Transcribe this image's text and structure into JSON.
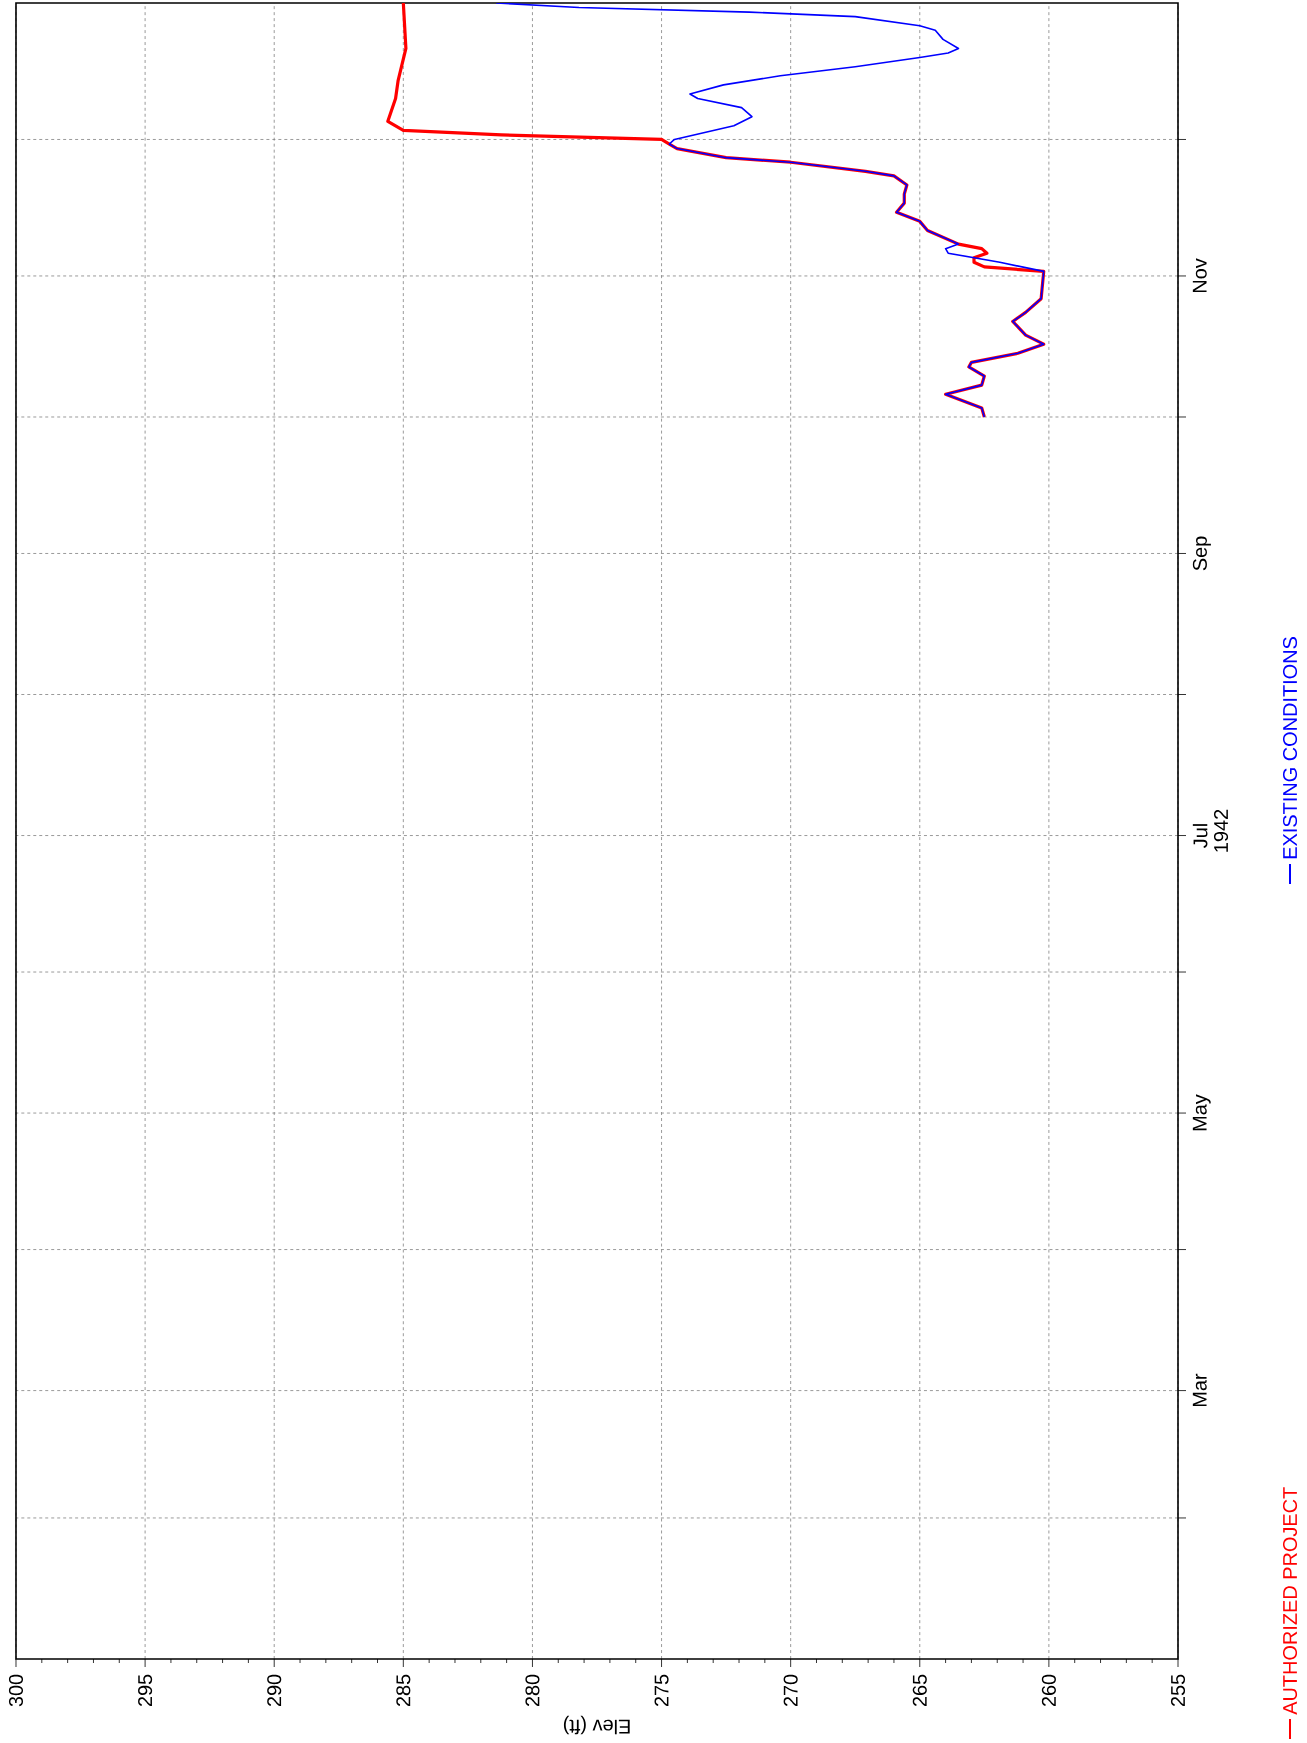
{
  "chart_data": {
    "type": "line",
    "orientation": "horizontal",
    "xlabel": "Elev (ft)",
    "ylabel": "1942",
    "xlim": [
      300,
      255
    ],
    "xticks": [
      300,
      295,
      290,
      285,
      280,
      275,
      270,
      265,
      260,
      255
    ],
    "ylim": [
      "1942-01-01",
      "1942-12-31"
    ],
    "yticks": [
      {
        "value": "1942-02-01",
        "label": null
      },
      {
        "value": "1942-03-01",
        "label": "Mar"
      },
      {
        "value": "1942-04-01",
        "label": null
      },
      {
        "value": "1942-05-01",
        "label": "May"
      },
      {
        "value": "1942-06-01",
        "label": null
      },
      {
        "value": "1942-07-01",
        "label": "Jul"
      },
      {
        "value": "1942-08-01",
        "label": null
      },
      {
        "value": "1942-09-01",
        "label": "Sep"
      },
      {
        "value": "1942-10-01",
        "label": null
      },
      {
        "value": "1942-11-01",
        "label": "Nov"
      },
      {
        "value": "1942-12-01",
        "label": null
      }
    ],
    "grid": true,
    "legend": "right",
    "marker": "none",
    "line_style": "solid",
    "series": [
      {
        "name": "AUTHORIZED PROJECT",
        "color": "#ff0000",
        "x": [
          "1942-10-01",
          "1942-10-03",
          "1942-10-06",
          "1942-10-08",
          "1942-10-10",
          "1942-10-12",
          "1942-10-13",
          "1942-10-15",
          "1942-10-17",
          "1942-10-19",
          "1942-10-22",
          "1942-10-24",
          "1942-10-27",
          "1942-11-02",
          "1942-11-03",
          "1942-11-04",
          "1942-11-05",
          "1942-11-06",
          "1942-11-07",
          "1942-11-08",
          "1942-11-11",
          "1942-11-13",
          "1942-11-15",
          "1942-11-17",
          "1942-11-19",
          "1942-11-21",
          "1942-11-23",
          "1942-11-24",
          "1942-11-26",
          "1942-11-27",
          "1942-11-29",
          "1942-11-30",
          "1942-12-01",
          "1942-12-02",
          "1942-12-03",
          "1942-12-05",
          "1942-12-10",
          "1942-12-14",
          "1942-12-21",
          "1942-12-31"
        ],
        "values": [
          262.5,
          262.6,
          264.0,
          262.6,
          262.5,
          263.1,
          263.0,
          261.2,
          260.2,
          260.9,
          261.4,
          260.9,
          260.3,
          260.2,
          262.5,
          262.9,
          262.9,
          262.4,
          262.6,
          263.5,
          264.7,
          265.0,
          265.9,
          265.6,
          265.6,
          265.5,
          266.0,
          267.1,
          270.0,
          272.5,
          274.4,
          274.7,
          275.0,
          281.2,
          285.0,
          285.6,
          285.3,
          285.2,
          284.9,
          285.0
        ]
      },
      {
        "name": "EXISTING CONDITIONS",
        "color": "#0000ff",
        "x": [
          "1942-10-01",
          "1942-10-03",
          "1942-10-06",
          "1942-10-08",
          "1942-10-10",
          "1942-10-12",
          "1942-10-13",
          "1942-10-15",
          "1942-10-17",
          "1942-10-19",
          "1942-10-22",
          "1942-10-24",
          "1942-10-27",
          "1942-11-02",
          "1942-11-04",
          "1942-11-06",
          "1942-11-07",
          "1942-11-08",
          "1942-11-11",
          "1942-11-13",
          "1942-11-15",
          "1942-11-17",
          "1942-11-19",
          "1942-11-21",
          "1942-11-23",
          "1942-11-24",
          "1942-11-26",
          "1942-11-27",
          "1942-11-29",
          "1942-11-30",
          "1942-12-01",
          "1942-12-04",
          "1942-12-06",
          "1942-12-08",
          "1942-12-10",
          "1942-12-11",
          "1942-12-13",
          "1942-12-15",
          "1942-12-17",
          "1942-12-19",
          "1942-12-20",
          "1942-12-21",
          "1942-12-23",
          "1942-12-25",
          "1942-12-26",
          "1942-12-28",
          "1942-12-29",
          "1942-12-30",
          "1942-12-31"
        ],
        "values": [
          262.5,
          262.6,
          264.0,
          262.6,
          262.5,
          263.1,
          263.0,
          261.2,
          260.2,
          260.9,
          261.4,
          260.9,
          260.3,
          260.2,
          261.9,
          263.9,
          264.0,
          263.5,
          264.7,
          265.0,
          265.9,
          265.6,
          265.6,
          265.5,
          266.0,
          267.1,
          270.0,
          272.5,
          274.4,
          274.7,
          274.5,
          272.2,
          271.5,
          271.9,
          273.6,
          273.9,
          272.6,
          270.4,
          267.5,
          265.0,
          263.9,
          263.5,
          264.1,
          264.4,
          265.0,
          267.5,
          271.6,
          278.2,
          281.4
        ]
      }
    ]
  }
}
